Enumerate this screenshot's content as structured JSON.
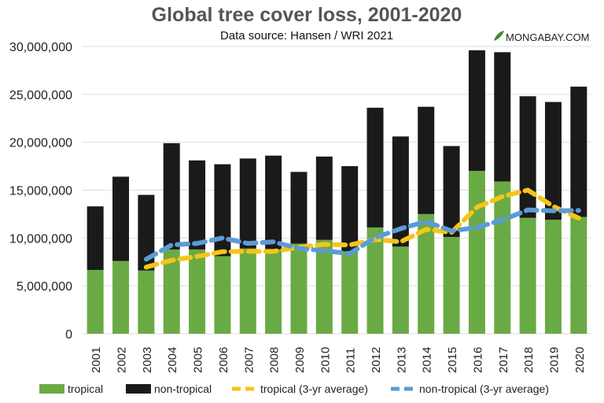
{
  "chart_data": {
    "type": "bar",
    "stacked": true,
    "title": "Global tree cover loss, 2001-2020",
    "subtitle": "Data source: Hansen / WRI 2021",
    "logo_text": "MONGABAY.COM",
    "xlabel": "",
    "ylabel": "",
    "ylim": [
      0,
      30000000
    ],
    "yticks": [
      0,
      5000000,
      10000000,
      15000000,
      20000000,
      25000000,
      30000000
    ],
    "ytick_labels": [
      "0",
      "5,000,000",
      "10,000,000",
      "15,000,000",
      "20,000,000",
      "25,000,000",
      "30,000,000"
    ],
    "grid": true,
    "legend_position": "bottom",
    "categories": [
      "2001",
      "2002",
      "2003",
      "2004",
      "2005",
      "2006",
      "2007",
      "2008",
      "2009",
      "2010",
      "2011",
      "2012",
      "2013",
      "2014",
      "2015",
      "2016",
      "2017",
      "2018",
      "2019",
      "2020"
    ],
    "series": [
      {
        "name": "tropical",
        "kind": "bar",
        "color": "#6aaa45",
        "values": [
          6660000,
          7600000,
          6600000,
          8800000,
          8800000,
          8100000,
          8900000,
          8800000,
          9400000,
          9800000,
          8600000,
          11100000,
          9100000,
          12500000,
          10100000,
          17000000,
          15900000,
          12100000,
          11900000,
          12200000
        ]
      },
      {
        "name": "non-tropical",
        "kind": "bar",
        "color": "#1a1a1a",
        "values": [
          6640000,
          8800000,
          7900000,
          11100000,
          9300000,
          9600000,
          9400000,
          9800000,
          7500000,
          8700000,
          8900000,
          12500000,
          11500000,
          11200000,
          9500000,
          12600000,
          13500000,
          12700000,
          12300000,
          13600000
        ]
      },
      {
        "name": "tropical (3-yr average)",
        "kind": "line",
        "color": "#f5c518",
        "values": [
          null,
          null,
          6950000,
          7670000,
          8070000,
          8570000,
          8600000,
          8600000,
          9030000,
          9330000,
          9270000,
          9830000,
          9600000,
          10900000,
          10570000,
          13200000,
          14330000,
          15000000,
          13300000,
          12070000
        ]
      },
      {
        "name": "non-tropical (3-yr average)",
        "kind": "line",
        "color": "#5b9bd5",
        "values": [
          null,
          null,
          7780000,
          9270000,
          9430000,
          10000000,
          9430000,
          9600000,
          8900000,
          8670000,
          8370000,
          10030000,
          10970000,
          11730000,
          10730000,
          11100000,
          11870000,
          12930000,
          12830000,
          12870000
        ]
      }
    ]
  }
}
